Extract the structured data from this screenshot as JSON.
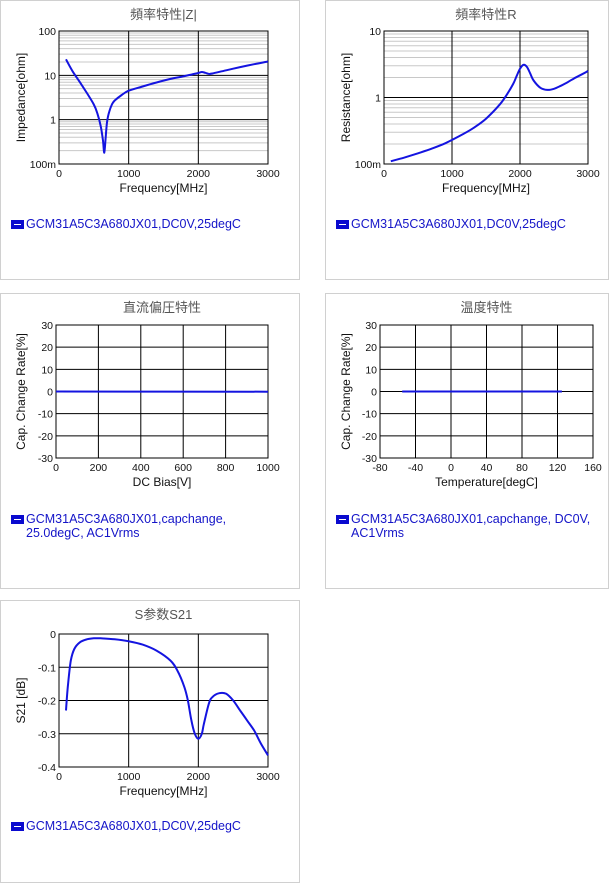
{
  "colors": {
    "line": "#1414e0",
    "grid_major": "#000000",
    "grid_minor": "#c8c8c8",
    "legend": "#1414c8"
  },
  "chart_data": [
    {
      "id": "c1",
      "type": "line",
      "title": "頻率特性|Z|",
      "xlabel": "Frequency[MHz]",
      "ylabel": "Impedance[ohm]",
      "xlim": [
        0,
        3000
      ],
      "ylim": [
        0.1,
        100
      ],
      "yscale": "log",
      "xticks": [
        0,
        1000,
        2000,
        3000
      ],
      "xtick_labels": [
        "0",
        "1000",
        "2000",
        "3000"
      ],
      "yticks": [
        0.1,
        1,
        10,
        100
      ],
      "ytick_labels": [
        "100m",
        "1",
        "10",
        "100"
      ],
      "series": [
        {
          "x": [
            100,
            200,
            300,
            400,
            500,
            550,
            600,
            630,
            650,
            670,
            690,
            720,
            760,
            800,
            900,
            1000,
            1200,
            1400,
            1600,
            1800,
            2000,
            2050,
            2100,
            2150,
            2200,
            2400,
            2600,
            2800,
            3000
          ],
          "y": [
            23,
            12,
            7,
            4,
            2.2,
            1.4,
            0.7,
            0.35,
            0.18,
            0.4,
            0.9,
            1.5,
            2.2,
            2.7,
            3.6,
            4.5,
            5.6,
            6.9,
            8.3,
            9.6,
            11.3,
            11.9,
            11.4,
            10.8,
            11.0,
            13.0,
            15.3,
            17.8,
            20.5
          ]
        }
      ],
      "legend": "GCM31A5C3A680JX01,DC0V,25degC"
    },
    {
      "id": "c2",
      "type": "line",
      "title": "頻率特性R",
      "xlabel": "Frequency[MHz]",
      "ylabel": "Resistance[ohm]",
      "xlim": [
        0,
        3000
      ],
      "ylim": [
        0.1,
        10
      ],
      "yscale": "log",
      "xticks": [
        0,
        1000,
        2000,
        3000
      ],
      "xtick_labels": [
        "0",
        "1000",
        "2000",
        "3000"
      ],
      "yticks": [
        0.1,
        1,
        10
      ],
      "ytick_labels": [
        "100m",
        "1",
        "10"
      ],
      "series": [
        {
          "x": [
            100,
            300,
            500,
            700,
            900,
            1100,
            1300,
            1500,
            1700,
            1800,
            1900,
            1950,
            2000,
            2050,
            2100,
            2150,
            2200,
            2300,
            2400,
            2500,
            2600,
            2700,
            2800,
            2900,
            3000
          ],
          "y": [
            0.11,
            0.125,
            0.145,
            0.17,
            0.205,
            0.26,
            0.34,
            0.48,
            0.78,
            1.08,
            1.6,
            2.1,
            2.7,
            3.1,
            2.9,
            2.3,
            1.8,
            1.4,
            1.3,
            1.35,
            1.5,
            1.7,
            1.95,
            2.2,
            2.5
          ]
        }
      ],
      "legend": "GCM31A5C3A680JX01,DC0V,25degC"
    },
    {
      "id": "c3",
      "type": "line",
      "title": "直流偏圧特性",
      "xlabel": "DC Bias[V]",
      "ylabel": "Cap. Change Rate[%]",
      "xlim": [
        0,
        1000
      ],
      "ylim": [
        -30,
        30
      ],
      "yscale": "linear",
      "xticks": [
        0,
        200,
        400,
        600,
        800,
        1000
      ],
      "xtick_labels": [
        "0",
        "200",
        "400",
        "600",
        "800",
        "1000"
      ],
      "yticks": [
        -30,
        -20,
        -10,
        0,
        10,
        20,
        30
      ],
      "ytick_labels": [
        "-30",
        "-20",
        "-10",
        "0",
        "10",
        "20",
        "30"
      ],
      "series": [
        {
          "x": [
            0,
            1000
          ],
          "y": [
            0,
            -0.1
          ]
        }
      ],
      "legend": "GCM31A5C3A680JX01,capchange, 25.0degC, AC1Vrms"
    },
    {
      "id": "c4",
      "type": "line",
      "title": "温度特性",
      "xlabel": "Temperature[degC]",
      "ylabel": "Cap. Change Rate[%]",
      "xlim": [
        -80,
        160
      ],
      "ylim": [
        -30,
        30
      ],
      "yscale": "linear",
      "xticks": [
        -80,
        -40,
        0,
        40,
        80,
        120,
        160
      ],
      "xtick_labels": [
        "-80",
        "-40",
        "0",
        "40",
        "80",
        "120",
        "160"
      ],
      "yticks": [
        -30,
        -20,
        -10,
        0,
        10,
        20,
        30
      ],
      "ytick_labels": [
        "-30",
        "-20",
        "-10",
        "0",
        "10",
        "20",
        "30"
      ],
      "series": [
        {
          "x": [
            -55,
            125
          ],
          "y": [
            0,
            0
          ]
        }
      ],
      "legend": "GCM31A5C3A680JX01,capchange, DC0V, AC1Vrms"
    },
    {
      "id": "c5",
      "type": "line",
      "title": "S参数S21",
      "xlabel": "Frequency[MHz]",
      "ylabel": "S21 [dB]",
      "xlim": [
        0,
        3000
      ],
      "ylim": [
        -0.4,
        0
      ],
      "yscale": "linear",
      "xticks": [
        0,
        1000,
        2000,
        3000
      ],
      "xtick_labels": [
        "0",
        "1000",
        "2000",
        "3000"
      ],
      "yticks": [
        -0.4,
        -0.3,
        -0.2,
        -0.1,
        0
      ],
      "ytick_labels": [
        "-0.4",
        "-0.3",
        "-0.2",
        "-0.1",
        "0"
      ],
      "series": [
        {
          "x": [
            100,
            130,
            170,
            220,
            300,
            400,
            500,
            600,
            800,
            1000,
            1200,
            1400,
            1600,
            1700,
            1800,
            1850,
            1900,
            1950,
            2000,
            2050,
            2080,
            2150,
            2200,
            2300,
            2400,
            2500,
            2600,
            2700,
            2800,
            2900,
            3000
          ],
          "y": [
            -0.23,
            -0.15,
            -0.08,
            -0.045,
            -0.025,
            -0.016,
            -0.013,
            -0.013,
            -0.016,
            -0.022,
            -0.032,
            -0.05,
            -0.08,
            -0.11,
            -0.16,
            -0.2,
            -0.26,
            -0.3,
            -0.315,
            -0.3,
            -0.27,
            -0.21,
            -0.19,
            -0.178,
            -0.18,
            -0.2,
            -0.23,
            -0.26,
            -0.29,
            -0.33,
            -0.365
          ]
        }
      ],
      "legend": "GCM31A5C3A680JX01,DC0V,25degC"
    }
  ]
}
